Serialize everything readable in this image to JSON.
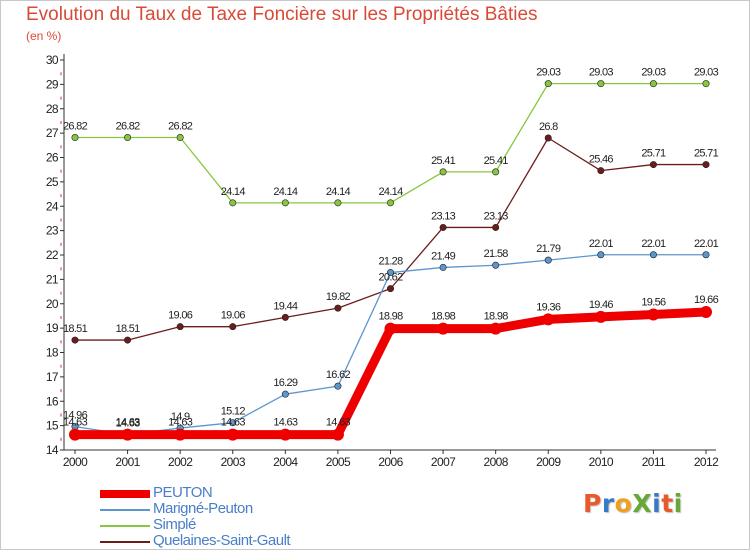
{
  "header": {
    "title": "Evolution du Taux de Taxe Foncière sur les Propriétés Bâties",
    "subtitle": "(en %)"
  },
  "logo": {
    "text": "ProXiti",
    "colors": [
      "#e85a2a",
      "#3a78c8",
      "#f0a020",
      "#68a838",
      "#3a78c8",
      "#e85a2a",
      "#68a838"
    ]
  },
  "chart_data": {
    "type": "line",
    "title": "Evolution du Taux de Taxe Foncière sur les Propriétés Bâties",
    "ylabel": "(en %)",
    "xlabel": "",
    "ylim": [
      14,
      30
    ],
    "yticks": [
      14,
      15,
      16,
      17,
      18,
      19,
      20,
      21,
      22,
      23,
      24,
      25,
      26,
      27,
      28,
      29,
      30
    ],
    "x": [
      "2000",
      "2001",
      "2002",
      "2003",
      "2004",
      "2005",
      "2006",
      "2007",
      "2008",
      "2009",
      "2010",
      "2011",
      "2012"
    ],
    "grid": "none",
    "legend_position": "bottom-left",
    "series": [
      {
        "name": "PEUTON",
        "color": "#ee0000",
        "values": [
          14.63,
          14.63,
          14.63,
          14.63,
          14.63,
          14.63,
          18.98,
          18.98,
          18.98,
          19.36,
          19.46,
          19.56,
          19.66
        ],
        "labels": [
          "14.63",
          "14.63",
          "14.63",
          "14.63",
          "14.63",
          "14.63",
          "18.98",
          "18.98",
          "18.98",
          "19.36",
          "19.46",
          "19.56",
          "19.66"
        ]
      },
      {
        "name": "Marigné-Peuton",
        "color": "#5c96cc",
        "values": [
          14.96,
          14.63,
          14.9,
          15.12,
          16.29,
          16.62,
          21.28,
          21.49,
          21.58,
          21.79,
          22.01,
          22.01,
          22.01
        ],
        "labels": [
          "14.96",
          "14.63",
          "14.9",
          "15.12",
          "16.29",
          "16.62",
          "21.28",
          "21.49",
          "21.58",
          "21.79",
          "22.01",
          "22.01",
          "22.01"
        ]
      },
      {
        "name": "Simplé",
        "color": "#88c640",
        "values": [
          26.82,
          26.82,
          26.82,
          24.14,
          24.14,
          24.14,
          24.14,
          25.41,
          25.41,
          29.03,
          29.03,
          29.03,
          29.03
        ],
        "labels": [
          "26.82",
          "26.82",
          "26.82",
          "24.14",
          "24.14",
          "24.14",
          "24.14",
          "25.41",
          "25.41",
          "29.03",
          "29.03",
          "29.03",
          "29.03"
        ]
      },
      {
        "name": "Quelaines-Saint-Gault",
        "color": "#6d1c1c",
        "values": [
          18.51,
          18.51,
          19.06,
          19.06,
          19.44,
          19.82,
          20.62,
          23.13,
          23.13,
          26.8,
          25.46,
          25.71,
          25.71
        ],
        "labels": [
          "18.51",
          "18.51",
          "19.06",
          "19.06",
          "19.44",
          "19.82",
          "20.62",
          "23.13",
          "23.13",
          "26.8",
          "25.46",
          "25.71",
          "25.71"
        ]
      }
    ]
  }
}
